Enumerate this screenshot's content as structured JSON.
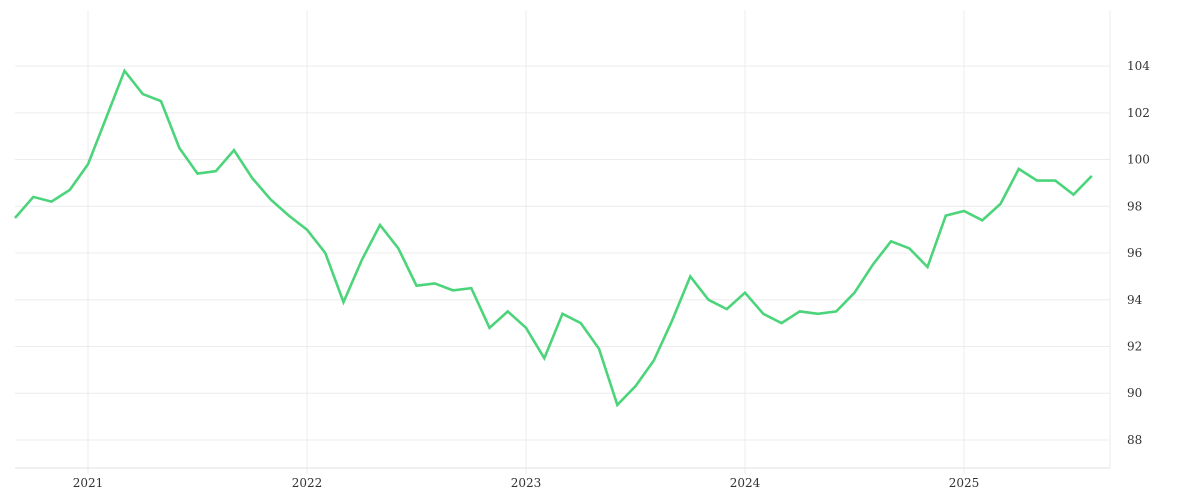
{
  "chart_data": {
    "type": "line",
    "title": "",
    "xlabel": "",
    "ylabel": "",
    "x_tick_labels": [
      "2021",
      "2022",
      "2023",
      "2024",
      "2025"
    ],
    "y_tick_labels": [
      "88",
      "90",
      "92",
      "94",
      "96",
      "98",
      "100",
      "102",
      "104"
    ],
    "ylim": [
      86.8,
      106.4
    ],
    "xlim": [
      "2020-09",
      "2025-09"
    ],
    "y_axis_side": "right",
    "grid": true,
    "legend": "none",
    "series": [
      {
        "color": "#4cd47a",
        "x": [
          "2020-09",
          "2020-10",
          "2020-11",
          "2020-12",
          "2021-01",
          "2021-02",
          "2021-03",
          "2021-04",
          "2021-05",
          "2021-06",
          "2021-07",
          "2021-08",
          "2021-09",
          "2021-10",
          "2021-11",
          "2021-12",
          "2022-01",
          "2022-02",
          "2022-03",
          "2022-04",
          "2022-05",
          "2022-06",
          "2022-07",
          "2022-08",
          "2022-09",
          "2022-10",
          "2022-11",
          "2022-12",
          "2023-01",
          "2023-02",
          "2023-03",
          "2023-04",
          "2023-05",
          "2023-06",
          "2023-07",
          "2023-08",
          "2023-09",
          "2023-10",
          "2023-11",
          "2023-12",
          "2024-01",
          "2024-02",
          "2024-03",
          "2024-04",
          "2024-05",
          "2024-06",
          "2024-07",
          "2024-08",
          "2024-09",
          "2024-10",
          "2024-11",
          "2024-12",
          "2025-01",
          "2025-02",
          "2025-03",
          "2025-04",
          "2025-05",
          "2025-06",
          "2025-07",
          "2025-08"
        ],
        "values": [
          97.5,
          98.4,
          98.2,
          98.7,
          99.8,
          101.8,
          103.8,
          102.8,
          102.5,
          100.5,
          99.4,
          99.5,
          100.4,
          99.2,
          98.3,
          97.6,
          97.0,
          96.0,
          93.9,
          95.7,
          97.2,
          96.2,
          94.6,
          94.7,
          94.4,
          94.5,
          92.8,
          93.5,
          92.8,
          91.5,
          93.4,
          93.0,
          91.9,
          89.5,
          90.3,
          91.4,
          93.1,
          95.0,
          94.0,
          93.6,
          94.3,
          93.4,
          93.0,
          93.5,
          93.4,
          93.5,
          94.3,
          95.5,
          96.5,
          96.2,
          95.4,
          97.6,
          97.8,
          97.4,
          98.1,
          99.6,
          99.1,
          99.1,
          98.5,
          99.3
        ]
      }
    ]
  }
}
